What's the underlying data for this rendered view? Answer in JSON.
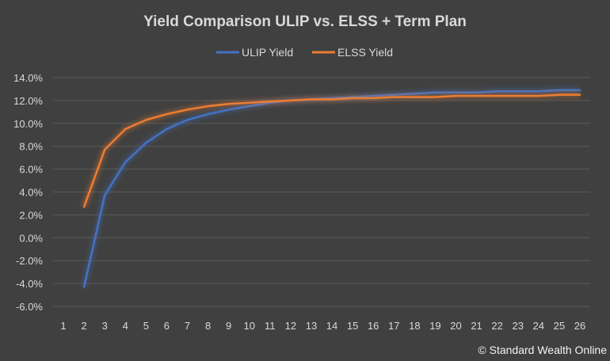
{
  "chart_data": {
    "type": "line",
    "title": "Yield Comparison  ULIP vs. ELSS + Term Plan",
    "xlabel": "",
    "ylabel": "",
    "categories": [
      "1",
      "2",
      "3",
      "4",
      "5",
      "6",
      "7",
      "8",
      "9",
      "10",
      "11",
      "12",
      "13",
      "14",
      "15",
      "16",
      "17",
      "18",
      "19",
      "20",
      "21",
      "22",
      "23",
      "24",
      "25",
      "26"
    ],
    "ylim": [
      -0.06,
      0.14
    ],
    "yticks": [
      "14.0%",
      "12.0%",
      "10.0%",
      "8.0%",
      "6.0%",
      "4.0%",
      "2.0%",
      "0.0%",
      "-2.0%",
      "-4.0%",
      "-6.0%"
    ],
    "grid": true,
    "legend_position": "top",
    "series": [
      {
        "name": "ULIP Yield",
        "color": "#4472c4",
        "values": [
          null,
          -0.043,
          0.037,
          0.066,
          0.083,
          0.095,
          0.103,
          0.108,
          0.112,
          0.115,
          0.118,
          0.12,
          0.121,
          0.122,
          0.123,
          0.124,
          0.125,
          0.126,
          0.127,
          0.127,
          0.127,
          0.128,
          0.128,
          0.128,
          0.129,
          0.129
        ]
      },
      {
        "name": "ELSS Yield",
        "color": "#ed7d31",
        "values": [
          null,
          0.027,
          0.077,
          0.095,
          0.103,
          0.108,
          0.112,
          0.115,
          0.117,
          0.118,
          0.119,
          0.12,
          0.121,
          0.121,
          0.122,
          0.122,
          0.123,
          0.123,
          0.123,
          0.124,
          0.124,
          0.124,
          0.124,
          0.124,
          0.125,
          0.125
        ]
      }
    ]
  },
  "footer": {
    "copyright": "© Standard Wealth Online"
  }
}
